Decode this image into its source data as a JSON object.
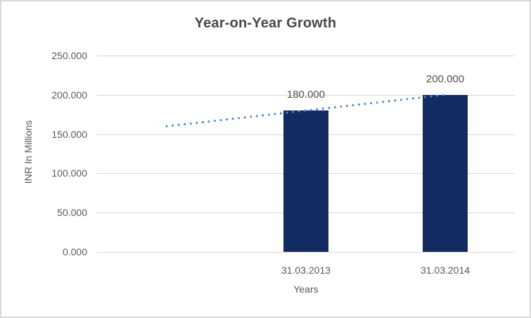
{
  "chart_data": {
    "type": "bar",
    "title": "Year-on-Year Growth",
    "xlabel": "Years",
    "ylabel": "INR In Millions",
    "categories": [
      "31.03.2013",
      "31.03.2014"
    ],
    "values": [
      180,
      200
    ],
    "value_labels": [
      "180.000",
      "200.000"
    ],
    "ylim": [
      0,
      250
    ],
    "ytick_values": [
      0,
      50,
      100,
      150,
      200,
      250
    ],
    "ytick_labels": [
      "0.000",
      "50.000",
      "100.000",
      "150.000",
      "200.000",
      "250.000"
    ],
    "grid": true,
    "legend": "none",
    "bar_slot_fractions": [
      0.5,
      0.8333
    ],
    "trendline": {
      "style": "dotted",
      "from": {
        "slot_fraction": 0.1667,
        "value": 160
      },
      "to": {
        "slot_fraction": 0.8333,
        "value": 200
      }
    },
    "colors": {
      "bar": "#122C62",
      "trendline": "#4E86C8",
      "gridline": "#D6D6D6",
      "axis_text": "#595959",
      "title_text": "#484848",
      "data_label_text": "#525252",
      "border": "#D9D9D9",
      "background": "#FFFFFF"
    }
  }
}
